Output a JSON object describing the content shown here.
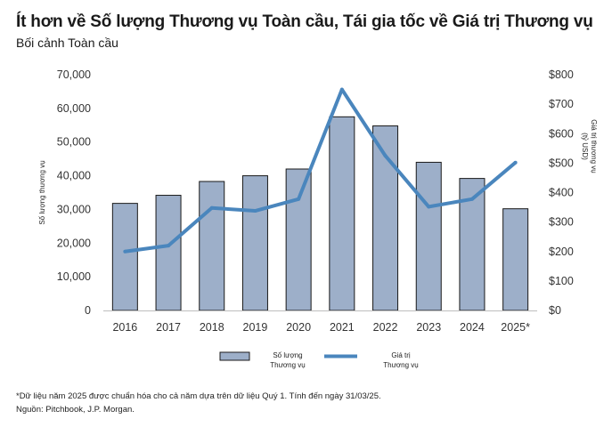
{
  "header": {
    "title": "Ít hơn về Số lượng Thương vụ Toàn cầu, Tái gia tốc về Giá trị Thương vụ",
    "subtitle": "Bối cảnh Toàn cầu"
  },
  "footer": {
    "note": "*Dữ liệu năm 2025 được chuẩn hóa cho cả năm dựa trên dữ liệu Quý 1. Tính đến ngày 31/03/25.",
    "source": "Nguồn: Pitchbook, J.P. Morgan."
  },
  "chart_data": {
    "type": "bar",
    "categories": [
      "2016",
      "2017",
      "2018",
      "2019",
      "2020",
      "2021",
      "2022",
      "2023",
      "2024",
      "2025*"
    ],
    "series": [
      {
        "name": "Số lượng Thương vụ",
        "type": "bar",
        "axis": "left",
        "values": [
          31800,
          34200,
          38300,
          40000,
          42000,
          57500,
          54800,
          44000,
          39200,
          30200
        ]
      },
      {
        "name": "Giá trị Thương vụ",
        "type": "line",
        "axis": "right",
        "values": [
          200,
          220,
          348,
          338,
          378,
          750,
          525,
          352,
          378,
          502
        ]
      }
    ],
    "ylabel": "Số lượng thương vụ",
    "y2label": "Giá trị thương vụ (tỷ USD)",
    "ylim": [
      0,
      70000
    ],
    "y2lim": [
      0,
      800
    ],
    "yticks": [
      "0",
      "10,000",
      "20,000",
      "30,000",
      "40,000",
      "50,000",
      "60,000",
      "70,000"
    ],
    "y2ticks": [
      "$0",
      "$100",
      "$200",
      "$300",
      "$400",
      "$500",
      "$600",
      "$700",
      "$800"
    ],
    "legend": [
      {
        "label_line1": "Số lượng",
        "label_line2": "Thương vụ",
        "kind": "bar"
      },
      {
        "label_line1": "Giá trị",
        "label_line2": "Thương vụ",
        "kind": "line"
      }
    ],
    "legend_position": "bottom",
    "grid": false,
    "colors": {
      "bar_fill": "#9dafc9",
      "bar_stroke": "#1a1a1a",
      "line": "#4a86bd",
      "axis_text": "#333333"
    }
  }
}
